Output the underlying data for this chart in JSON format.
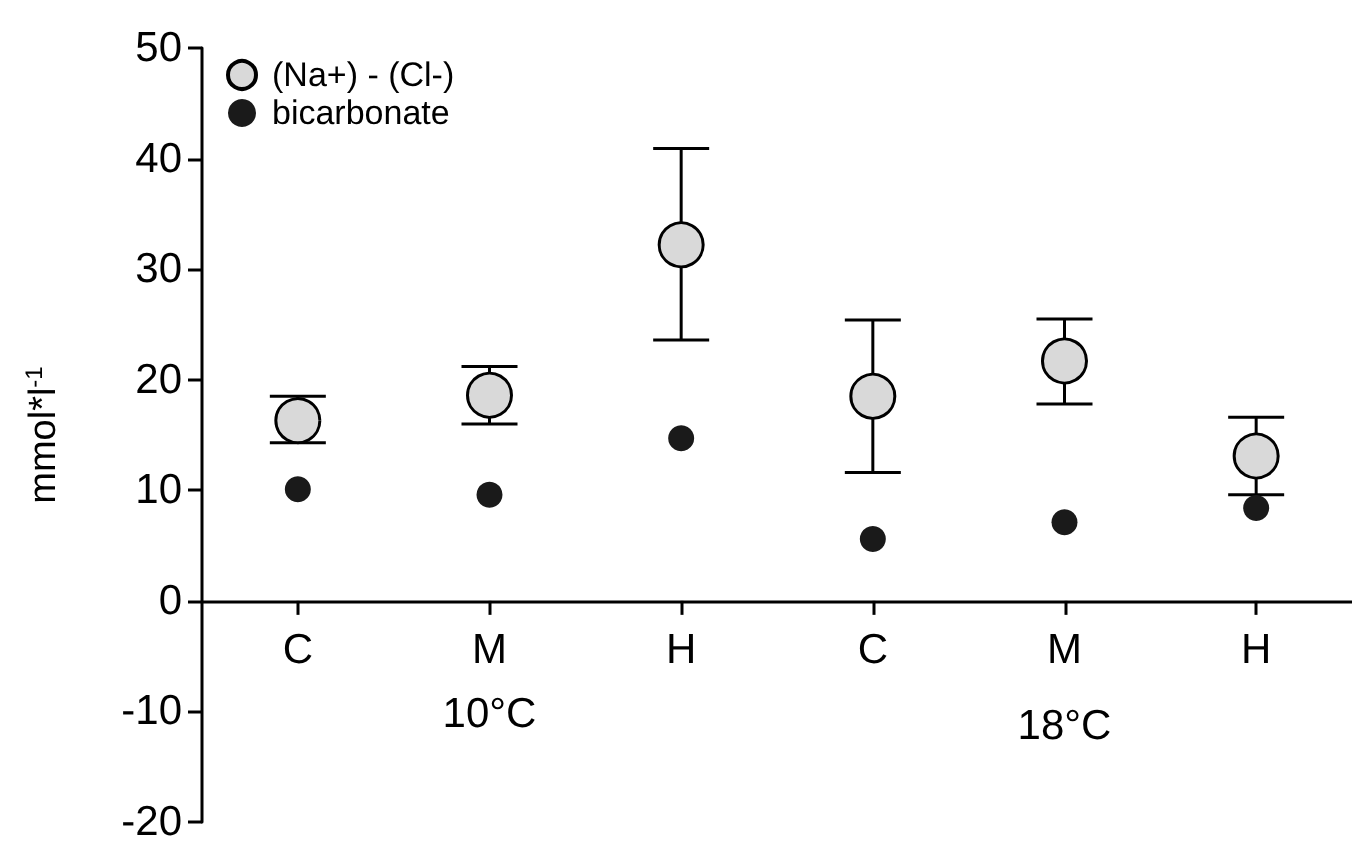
{
  "chart_data": {
    "type": "scatter",
    "ylabel": "mmol*l$^{-1}$",
    "categories": [
      "C",
      "M",
      "H",
      "C",
      "M",
      "H"
    ],
    "series": [
      {
        "name": "(Na+) - (Cl-)",
        "color": "#d9d9d9",
        "values": [
          16.3,
          18.6,
          32.2,
          18.5,
          21.7,
          13.1
        ],
        "errors": [
          [
            14.3,
            18.5
          ],
          [
            16,
            21.2
          ],
          [
            23.6,
            40.9
          ],
          [
            11.6,
            25.4
          ],
          [
            17.8,
            25.5
          ],
          [
            9.6,
            16.6
          ]
        ]
      },
      {
        "name": "bicarbonate",
        "color": "#1a1a1a",
        "values": [
          10.1,
          9.6,
          14.7,
          5.6,
          7.1,
          8.4
        ]
      }
    ],
    "ylim": [
      -20,
      50
    ],
    "yticks": [
      -20,
      -10,
      0,
      10,
      20,
      30,
      40,
      50
    ],
    "grid": false,
    "legend": "top left",
    "marker": "circle",
    "annotations": [
      "10°C",
      "18°C"
    ]
  }
}
